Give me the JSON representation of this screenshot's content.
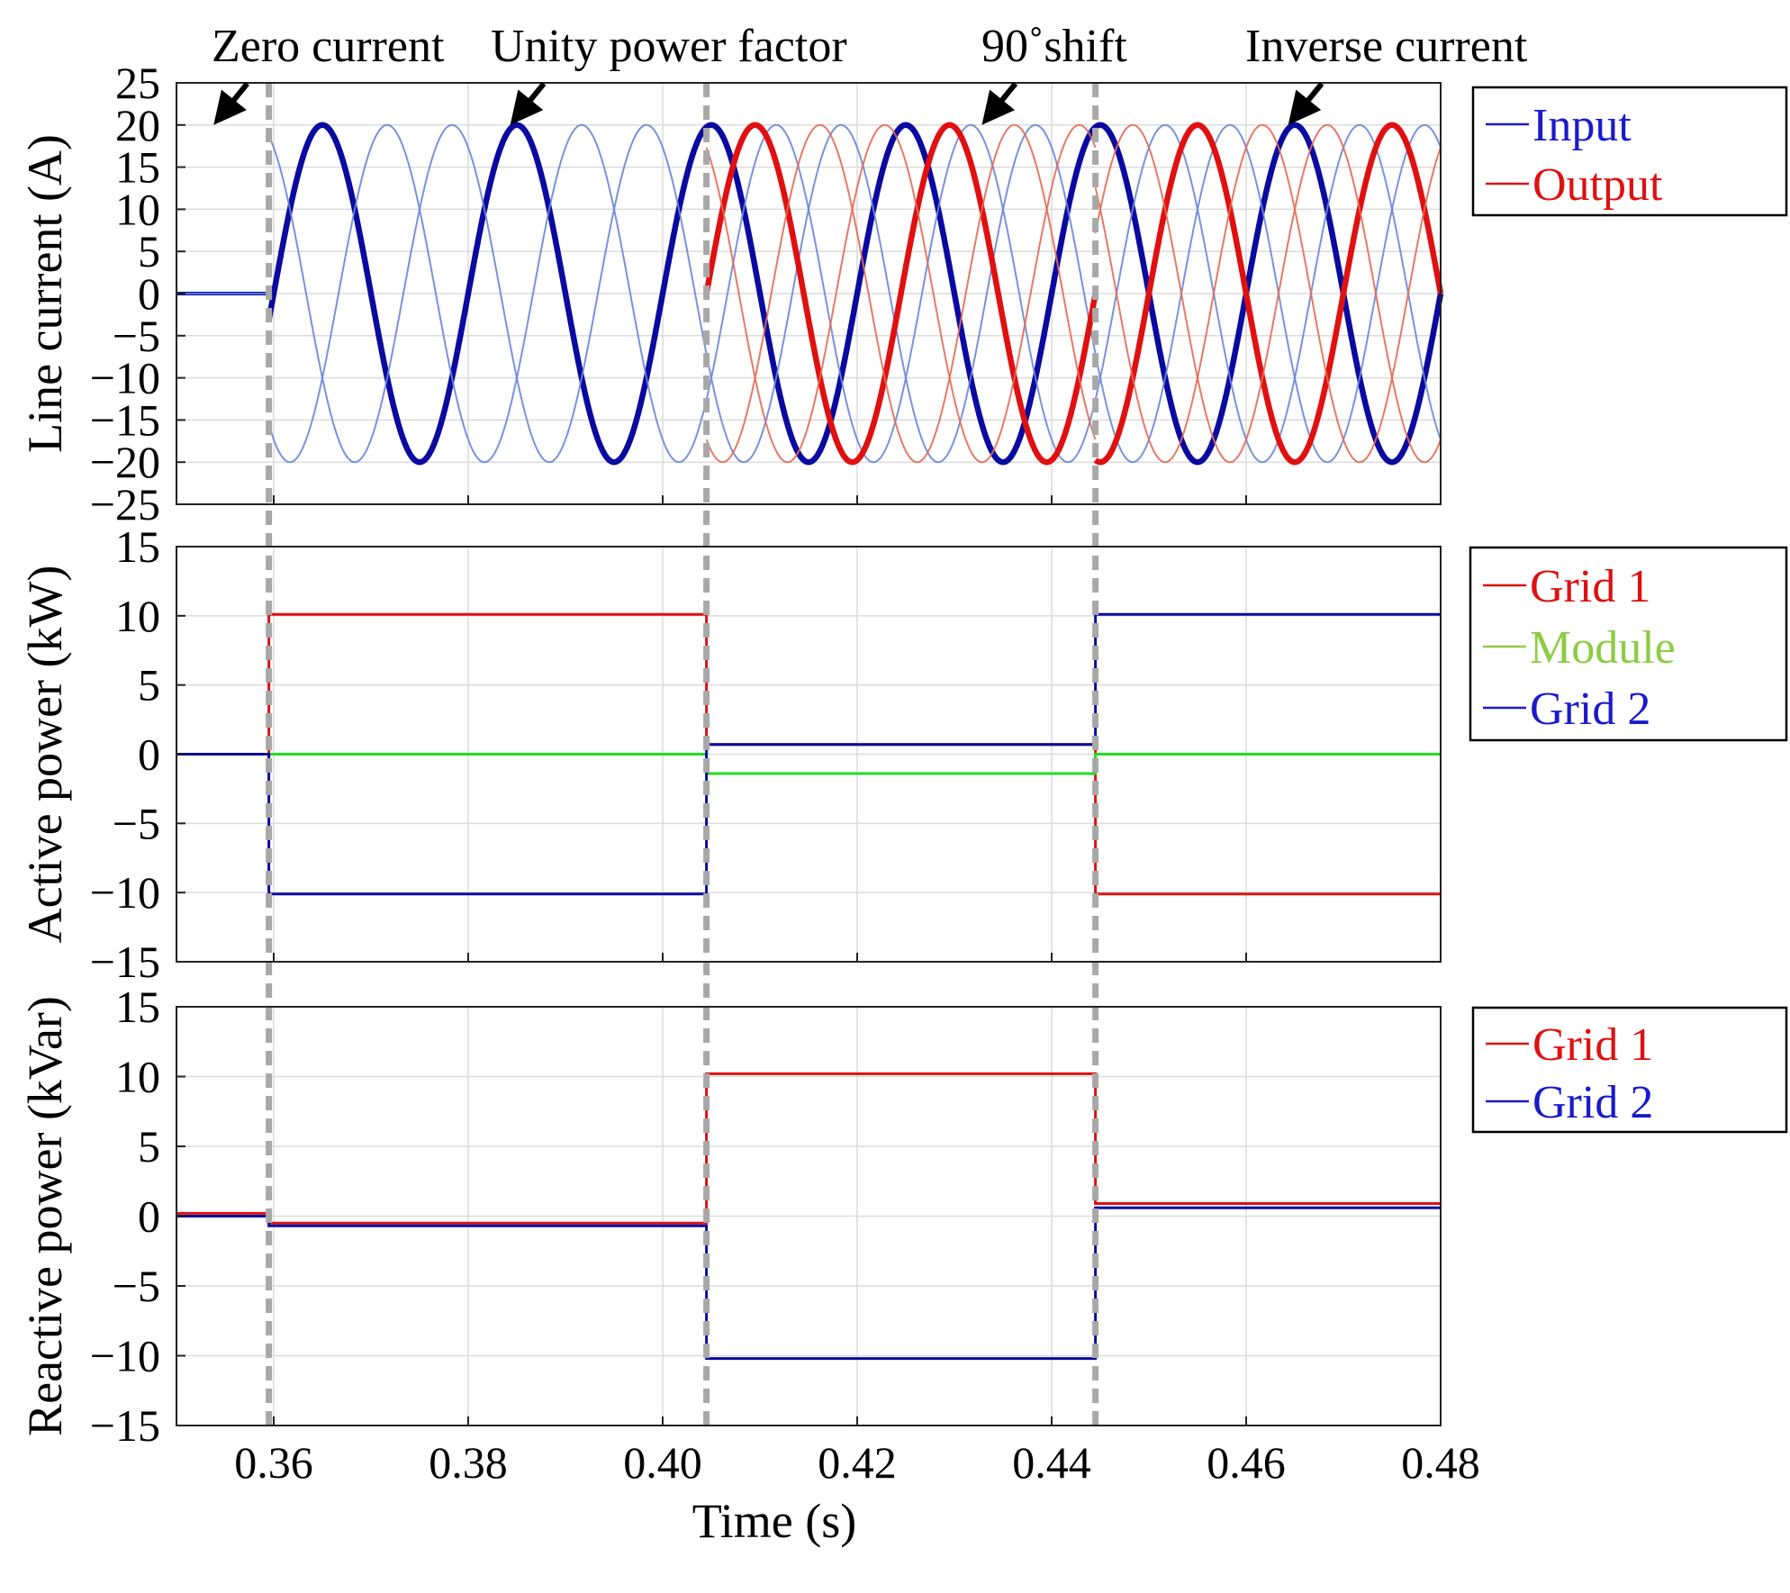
{
  "chart_data": {
    "type": "line",
    "xlabel": "Time (s)",
    "xlim": [
      0.35,
      0.48
    ],
    "xticks": [
      0.36,
      0.38,
      0.4,
      0.42,
      0.44,
      0.46,
      0.48
    ],
    "xtick_labels": [
      "0.36",
      "0.38",
      "0.40",
      "0.42",
      "0.44",
      "0.46",
      "0.48"
    ],
    "grid": true,
    "event_times": [
      0.3595,
      0.4045,
      0.4445
    ],
    "annotations": [
      {
        "text": "Zero current",
        "x": 0.3545,
        "y": 20
      },
      {
        "text": "Unity power factor",
        "x": 0.385,
        "y": 20
      },
      {
        "text": "90˚shift",
        "x": 0.4335,
        "y": 20
      },
      {
        "text": "Inverse current",
        "x": 0.465,
        "y": 20
      }
    ],
    "panels": [
      {
        "id": "line-current",
        "ylabel": "Line current (A)",
        "ylim": [
          -25,
          25
        ],
        "yticks": [
          25,
          20,
          15,
          10,
          5,
          0,
          -5,
          -10,
          -15,
          -20,
          -25
        ],
        "ytick_labels": [
          "25",
          "20",
          "15",
          "10",
          "5",
          "0",
          "−5",
          "−10",
          "−15",
          "−20",
          "−25"
        ],
        "legend": {
          "placement": "outside-right-top",
          "entries": [
            {
              "name": "Input",
              "color": "#1a1acc"
            },
            {
              "name": "Output",
              "color": "#dd1111"
            }
          ]
        },
        "series": [
          {
            "name": "Input",
            "color": "#0a0aa0",
            "amplitude_A": 20,
            "frequency_Hz": 50,
            "phases": 3,
            "segments": [
              {
                "t_start": 0.35,
                "t_end": 0.3595,
                "mode": "zero current",
                "value": 0
              },
              {
                "t_start": 0.3595,
                "t_end": 0.48,
                "mode": "sinusoid",
                "peak_time": 0.365
              }
            ]
          },
          {
            "name": "Output",
            "color": "#e01010",
            "amplitude_A": 20,
            "frequency_Hz": 50,
            "phases": 3,
            "segments": [
              {
                "t_start": 0.4045,
                "t_end": 0.4445,
                "mode": "90˚ shift",
                "peak_time": 0.4095
              },
              {
                "t_start": 0.4445,
                "t_end": 0.48,
                "mode": "inverse current",
                "peak_time": 0.475
              }
            ]
          }
        ]
      },
      {
        "id": "active-power",
        "ylabel": "Active power (kW)",
        "ylim": [
          -15,
          15
        ],
        "yticks": [
          15,
          10,
          5,
          0,
          -5,
          -10,
          -15
        ],
        "ytick_labels": [
          "15",
          "10",
          "5",
          "0",
          "−5",
          "−10",
          "−15"
        ],
        "legend": {
          "placement": "outside-right-top",
          "entries": [
            {
              "name": "Grid 1",
              "color": "#dd1111"
            },
            {
              "name": "Module",
              "color": "#8ccc44"
            },
            {
              "name": "Grid 2",
              "color": "#1a1acc"
            }
          ]
        },
        "series": [
          {
            "name": "Grid 1",
            "color": "#e01010",
            "steps": [
              {
                "t_start": 0.35,
                "t_end": 0.3595,
                "value": 0
              },
              {
                "t_start": 0.3595,
                "t_end": 0.4045,
                "value": 10.1
              },
              {
                "t_start": 0.4045,
                "t_end": 0.4445,
                "value": 0.7
              },
              {
                "t_start": 0.4445,
                "t_end": 0.48,
                "value": -10.1
              }
            ]
          },
          {
            "name": "Module",
            "color": "#22dd22",
            "steps": [
              {
                "t_start": 0.35,
                "t_end": 0.4045,
                "value": 0
              },
              {
                "t_start": 0.4045,
                "t_end": 0.4445,
                "value": -1.4
              },
              {
                "t_start": 0.4445,
                "t_end": 0.48,
                "value": 0
              }
            ]
          },
          {
            "name": "Grid 2",
            "color": "#0a0aa0",
            "steps": [
              {
                "t_start": 0.35,
                "t_end": 0.3595,
                "value": 0
              },
              {
                "t_start": 0.3595,
                "t_end": 0.4045,
                "value": -10.1
              },
              {
                "t_start": 0.4045,
                "t_end": 0.4445,
                "value": 0.7
              },
              {
                "t_start": 0.4445,
                "t_end": 0.48,
                "value": 10.1
              }
            ]
          }
        ]
      },
      {
        "id": "reactive-power",
        "ylabel": "Reactive power (kVar)",
        "ylim": [
          -15,
          15
        ],
        "yticks": [
          15,
          10,
          5,
          0,
          -5,
          -10,
          -15
        ],
        "ytick_labels": [
          "15",
          "10",
          "5",
          "0",
          "−5",
          "−10",
          "−15"
        ],
        "legend": {
          "placement": "outside-right-top",
          "entries": [
            {
              "name": "Grid 1",
              "color": "#dd1111"
            },
            {
              "name": "Grid 2",
              "color": "#1a1acc"
            }
          ]
        },
        "series": [
          {
            "name": "Grid 1",
            "color": "#e01010",
            "steps": [
              {
                "t_start": 0.35,
                "t_end": 0.3595,
                "value": 0.2
              },
              {
                "t_start": 0.3595,
                "t_end": 0.4045,
                "value": -0.5
              },
              {
                "t_start": 0.4045,
                "t_end": 0.4445,
                "value": 10.2
              },
              {
                "t_start": 0.4445,
                "t_end": 0.48,
                "value": 0.9
              }
            ]
          },
          {
            "name": "Grid 2",
            "color": "#0a0aa0",
            "steps": [
              {
                "t_start": 0.35,
                "t_end": 0.3595,
                "value": 0
              },
              {
                "t_start": 0.3595,
                "t_end": 0.4045,
                "value": -0.7
              },
              {
                "t_start": 0.4045,
                "t_end": 0.4445,
                "value": -10.2
              },
              {
                "t_start": 0.4445,
                "t_end": 0.48,
                "value": 0.6
              }
            ]
          }
        ]
      }
    ]
  }
}
